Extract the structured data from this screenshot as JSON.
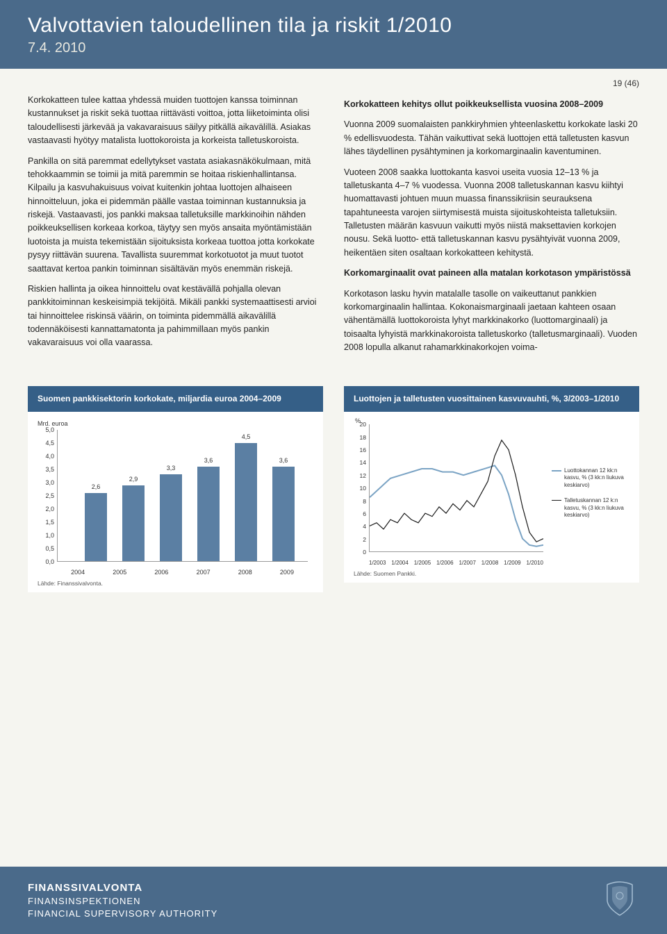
{
  "header": {
    "title": "Valvottavien taloudellinen tila ja riskit 1/2010",
    "date": "7.4. 2010"
  },
  "page_number": "19 (46)",
  "left_column": {
    "p1": "Korkokatte​en tulee kattaa yhdessä muiden tuottojen kanssa toiminnan kustannukset ja riskit sekä tuottaa riittävästi voittoa, jotta liiketoiminta olisi taloudellisesti järkevää ja vakavaraisuus säilyy pitkällä aikavälillä. Asiakas vastaavasti hyötyy matalista luottokoroista ja korkeista talletuskoroista.",
    "p2": "Pankilla on sitä paremmat edellytykset vastata asiakasnäkökulmaan, mitä tehokkaammin se toimii ja mitä paremmin se hoitaa riskienhallintansa. Kilpailu ja kasvuhakuisuus voivat kuitenkin johtaa luottojen alhaiseen hinnoitteluun, joka ei pidemmän päälle vastaa toiminnan kustannuksia ja riskejä. Vastaavasti, jos pankki maksaa talletuksille markkinoihin nähden poikkeuksellisen korkeaa korkoa, täytyy sen myös ansaita myöntämistään luotoista ja muista tekemistään sijoituksista korkeaa tuottoa jotta korkokate pysyy riittävän suurena. Tavallista suuremmat korkotuotot ja muut tuotot saattavat kertoa pankin toiminnan sisältävän myös enemmän riskejä.",
    "p3": "Riskien hallinta ja oikea hinnoittelu ovat kestävällä pohjalla olevan pankkitoiminnan keskeisimpiä tekijöitä. Mikäli pankki systemaattisesti arvioi tai hinnoittelee riskinsä väärin, on toiminta pidemmällä aikavälillä todennäköisesti kannattamatonta ja pahimmillaan myös pankin vakavaraisuus voi olla vaarassa."
  },
  "right_column": {
    "h1": "Korkokatte​en kehitys ollut poikkeuksellista vuosina 2008–2009",
    "p1": "Vuonna 2009 suomalaisten pankkiryhmien yhteenlaskettu korkokate laski 20 % edellisvuodesta. Tähän vaikuttivat sekä luottojen että talletusten kasvun lähes täydellinen pysähtyminen ja korkomarginaalin kaventuminen.",
    "p2": "Vuoteen 2008 saakka luottokanta kasvoi useita vuosia 12–13 % ja talletuskanta 4–7 % vuodessa. Vuonna 2008 talletuskannan kasvu kiihtyi huomattavasti johtuen muun muassa finanssikriisin seurauksena tapahtuneesta varojen siirtymisestä muista sijoituskohteista talletuksiin. Talletusten määrän kasvuun vaikutti myös niistä maksettavien korkojen nousu. Sekä luotto- että talletuskannan kasvu pysähtyivät vuonna 2009, heikentäen siten osaltaan korkokatteen kehitystä.",
    "h2": "Korkomarginaalit ovat paineen alla matalan korkotason ympäristössä",
    "p3": "Korkotason lasku hyvin matalalle tasolle on vaikeuttanut pankkien korkomarginaalin hallintaa. Kokonaismarginaali jaetaan kahteen osaan vähentämällä luottokoroista lyhyt markkinakorko (luottomarginaali) ja toisaalta lyhyistä markkinakoroista talletuskorko (talletusmarginaali). Vuoden 2008 lopulla alkanut rahamarkkinakorkojen voima-"
  },
  "bar_chart": {
    "title": "Suomen pankkisektorin korkokate, miljardia euroa 2004–2009",
    "y_axis_label": "Mrd. euroa",
    "type": "bar",
    "categories": [
      "2004",
      "2005",
      "2006",
      "2007",
      "2008",
      "2009"
    ],
    "values": [
      2.6,
      2.9,
      3.3,
      3.6,
      4.5,
      3.6
    ],
    "value_labels": [
      "2,6",
      "2,9",
      "3,3",
      "3,6",
      "4,5",
      "3,6"
    ],
    "y_ticks": [
      "0,0",
      "0,5",
      "1,0",
      "1,5",
      "2,0",
      "2,5",
      "3,0",
      "3,5",
      "4,0",
      "4,5",
      "5,0"
    ],
    "ylim": [
      0,
      5.0
    ],
    "bar_color": "#5b7fa3",
    "background_color": "#ffffff",
    "grid_color": "#dddddd",
    "source": "Lähde: Finanssivalvonta."
  },
  "line_chart": {
    "title": "Luottojen ja talletusten vuosittainen kasvuvauhti, %, 3/2003–1/2010",
    "y_axis_label": "%",
    "type": "line",
    "x_ticks": [
      "1/2003",
      "1/2004",
      "1/2005",
      "1/2006",
      "1/2007",
      "1/2008",
      "1/2009",
      "1/2010"
    ],
    "y_ticks": [
      "0",
      "2",
      "4",
      "6",
      "8",
      "10",
      "12",
      "14",
      "16",
      "18",
      "20"
    ],
    "ylim": [
      0,
      20
    ],
    "series": [
      {
        "name": "Luottokannan 12 kk:n kasvu, % (3 kk:n liukuva keskiarvo)",
        "color": "#7aa3c4",
        "width": 2,
        "points": [
          [
            0,
            8.5
          ],
          [
            4,
            9.5
          ],
          [
            8,
            10.5
          ],
          [
            12,
            11.5
          ],
          [
            18,
            12
          ],
          [
            24,
            12.5
          ],
          [
            30,
            13
          ],
          [
            36,
            13
          ],
          [
            42,
            12.5
          ],
          [
            48,
            12.5
          ],
          [
            54,
            12
          ],
          [
            60,
            12.5
          ],
          [
            66,
            13
          ],
          [
            72,
            13.5
          ],
          [
            76,
            12
          ],
          [
            80,
            9
          ],
          [
            84,
            5
          ],
          [
            88,
            2
          ],
          [
            92,
            1
          ],
          [
            96,
            0.8
          ],
          [
            100,
            1
          ]
        ]
      },
      {
        "name": "Talletuskannan 12 k:n kasvu, % (3 kk:n liukuva keskiarvo)",
        "color": "#1a1a1a",
        "width": 1.2,
        "points": [
          [
            0,
            4
          ],
          [
            4,
            4.5
          ],
          [
            8,
            3.5
          ],
          [
            12,
            5
          ],
          [
            16,
            4.5
          ],
          [
            20,
            6
          ],
          [
            24,
            5
          ],
          [
            28,
            4.5
          ],
          [
            32,
            6
          ],
          [
            36,
            5.5
          ],
          [
            40,
            7
          ],
          [
            44,
            6
          ],
          [
            48,
            7.5
          ],
          [
            52,
            6.5
          ],
          [
            56,
            8
          ],
          [
            60,
            7
          ],
          [
            64,
            9
          ],
          [
            68,
            11
          ],
          [
            72,
            15
          ],
          [
            76,
            17.5
          ],
          [
            80,
            16
          ],
          [
            84,
            12
          ],
          [
            88,
            7
          ],
          [
            92,
            3
          ],
          [
            96,
            1.5
          ],
          [
            100,
            2
          ]
        ]
      }
    ],
    "background_color": "#ffffff",
    "source": "Lähde: Suomen Pankki."
  },
  "footer": {
    "line1": "FINANSSIVALVONTA",
    "line2": "FINANSINSPEKTIONEN",
    "line3": "FINANCIAL SUPERVISORY AUTHORITY"
  },
  "colors": {
    "header_bg": "#4a6a8a",
    "chart_title_bg": "#355f87",
    "page_bg": "#f5f5f0",
    "text": "#222222"
  }
}
